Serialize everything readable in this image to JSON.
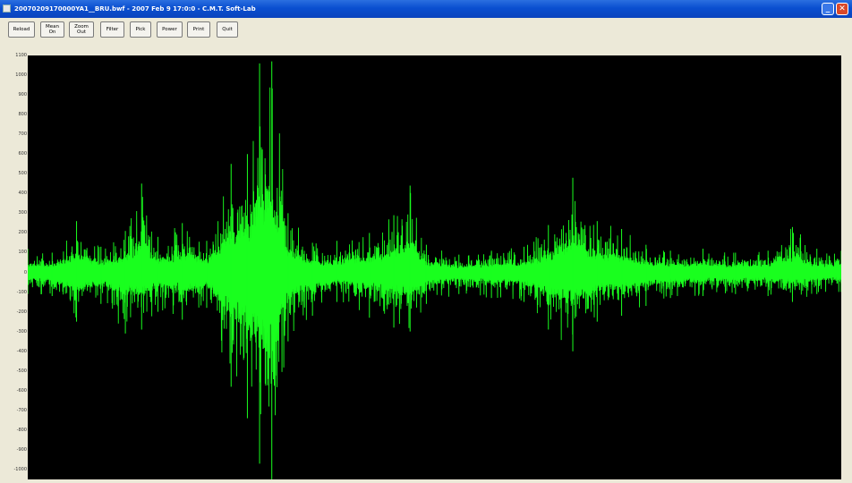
{
  "window": {
    "title": "20070209170000YA1__BRU.bwf - 2007 Feb 9 17:0:0 - C.M.T. Soft-Lab",
    "minimize_label": "_",
    "close_label": "✕"
  },
  "toolbar": {
    "buttons": [
      {
        "label": "Reload"
      },
      {
        "label": "Mean On"
      },
      {
        "label": "Zoom Out"
      },
      {
        "label": "Filter"
      },
      {
        "label": "Pick"
      },
      {
        "label": "Power"
      },
      {
        "label": "Print"
      },
      {
        "label": "Quit"
      }
    ]
  },
  "colors": {
    "signal": "#19ff1e",
    "plot_background": "#000000"
  },
  "chart_data": {
    "type": "line",
    "ylim": [
      -1050,
      1100
    ],
    "yticks": [
      "1100",
      "1000",
      "900",
      "800",
      "700",
      "600",
      "500",
      "400",
      "300",
      "200",
      "100",
      "0",
      "-100",
      "-200",
      "-300",
      "-400",
      "-500",
      "-600",
      "-700",
      "-800",
      "-900",
      "-1000"
    ],
    "xtick_labels": [
      "",
      "",
      "",
      ""
    ],
    "grid": false,
    "series": [
      {
        "envelope": [
          {
            "x": 0,
            "upper": 120,
            "lower": -110
          },
          {
            "x": 3,
            "upper": 100,
            "lower": -120
          },
          {
            "x": 6,
            "upper": 260,
            "lower": -250
          },
          {
            "x": 9,
            "upper": 130,
            "lower": -160
          },
          {
            "x": 12,
            "upper": 210,
            "lower": -310
          },
          {
            "x": 14,
            "upper": 450,
            "lower": -290
          },
          {
            "x": 16,
            "upper": 180,
            "lower": -200
          },
          {
            "x": 19,
            "upper": 250,
            "lower": -240
          },
          {
            "x": 22,
            "upper": 160,
            "lower": -180
          },
          {
            "x": 25,
            "upper": 550,
            "lower": -580
          },
          {
            "x": 27,
            "upper": 600,
            "lower": -740
          },
          {
            "x": 28.5,
            "upper": 1060,
            "lower": -970
          },
          {
            "x": 30,
            "upper": 1070,
            "lower": -1050
          },
          {
            "x": 32,
            "upper": 300,
            "lower": -350
          },
          {
            "x": 35,
            "upper": 150,
            "lower": -220
          },
          {
            "x": 38,
            "upper": 160,
            "lower": -150
          },
          {
            "x": 42,
            "upper": 200,
            "lower": -230
          },
          {
            "x": 45,
            "upper": 290,
            "lower": -280
          },
          {
            "x": 47,
            "upper": 440,
            "lower": -300
          },
          {
            "x": 49,
            "upper": 140,
            "lower": -160
          },
          {
            "x": 53,
            "upper": 90,
            "lower": -110
          },
          {
            "x": 57,
            "upper": 110,
            "lower": -130
          },
          {
            "x": 61,
            "upper": 130,
            "lower": -150
          },
          {
            "x": 64,
            "upper": 240,
            "lower": -290
          },
          {
            "x": 67,
            "upper": 480,
            "lower": -400
          },
          {
            "x": 70,
            "upper": 260,
            "lower": -250
          },
          {
            "x": 73,
            "upper": 220,
            "lower": -220
          },
          {
            "x": 76,
            "upper": 140,
            "lower": -170
          },
          {
            "x": 79,
            "upper": 110,
            "lower": -130
          },
          {
            "x": 83,
            "upper": 120,
            "lower": -120
          },
          {
            "x": 87,
            "upper": 100,
            "lower": -110
          },
          {
            "x": 91,
            "upper": 110,
            "lower": -120
          },
          {
            "x": 94,
            "upper": 230,
            "lower": -150
          },
          {
            "x": 97,
            "upper": 120,
            "lower": -110
          },
          {
            "x": 100,
            "upper": 110,
            "lower": -100
          }
        ]
      }
    ]
  }
}
